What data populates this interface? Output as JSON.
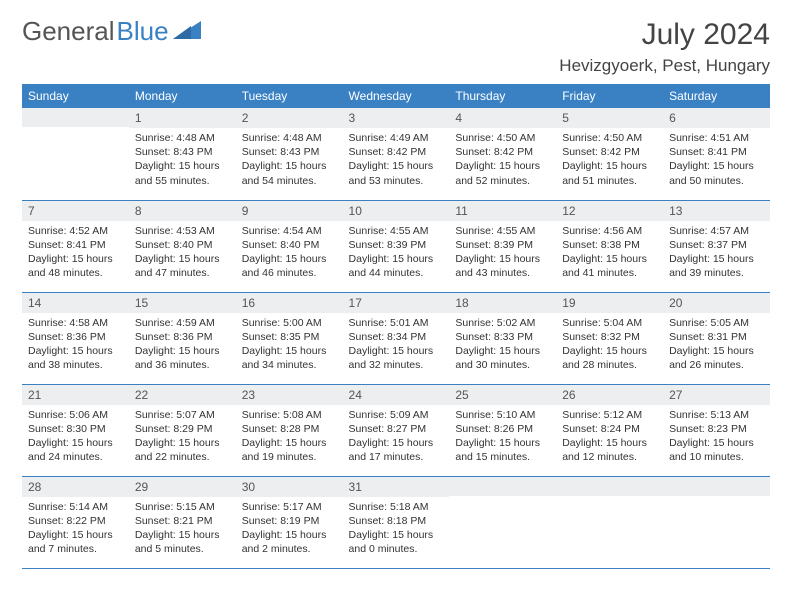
{
  "brand": {
    "name1": "General",
    "name2": "Blue"
  },
  "title": "July 2024",
  "location": "Hevizgyoerk, Pest, Hungary",
  "colors": {
    "accent": "#3a81c4",
    "header_bg": "#3a81c4",
    "daynum_bg": "#eceeef",
    "text": "#333333"
  },
  "weekdays": [
    "Sunday",
    "Monday",
    "Tuesday",
    "Wednesday",
    "Thursday",
    "Friday",
    "Saturday"
  ],
  "layout": {
    "first_weekday_index": 1,
    "days_in_month": 31
  },
  "days": {
    "1": {
      "sunrise": "4:48 AM",
      "sunset": "8:43 PM",
      "daylight": "15 hours and 55 minutes."
    },
    "2": {
      "sunrise": "4:48 AM",
      "sunset": "8:43 PM",
      "daylight": "15 hours and 54 minutes."
    },
    "3": {
      "sunrise": "4:49 AM",
      "sunset": "8:42 PM",
      "daylight": "15 hours and 53 minutes."
    },
    "4": {
      "sunrise": "4:50 AM",
      "sunset": "8:42 PM",
      "daylight": "15 hours and 52 minutes."
    },
    "5": {
      "sunrise": "4:50 AM",
      "sunset": "8:42 PM",
      "daylight": "15 hours and 51 minutes."
    },
    "6": {
      "sunrise": "4:51 AM",
      "sunset": "8:41 PM",
      "daylight": "15 hours and 50 minutes."
    },
    "7": {
      "sunrise": "4:52 AM",
      "sunset": "8:41 PM",
      "daylight": "15 hours and 48 minutes."
    },
    "8": {
      "sunrise": "4:53 AM",
      "sunset": "8:40 PM",
      "daylight": "15 hours and 47 minutes."
    },
    "9": {
      "sunrise": "4:54 AM",
      "sunset": "8:40 PM",
      "daylight": "15 hours and 46 minutes."
    },
    "10": {
      "sunrise": "4:55 AM",
      "sunset": "8:39 PM",
      "daylight": "15 hours and 44 minutes."
    },
    "11": {
      "sunrise": "4:55 AM",
      "sunset": "8:39 PM",
      "daylight": "15 hours and 43 minutes."
    },
    "12": {
      "sunrise": "4:56 AM",
      "sunset": "8:38 PM",
      "daylight": "15 hours and 41 minutes."
    },
    "13": {
      "sunrise": "4:57 AM",
      "sunset": "8:37 PM",
      "daylight": "15 hours and 39 minutes."
    },
    "14": {
      "sunrise": "4:58 AM",
      "sunset": "8:36 PM",
      "daylight": "15 hours and 38 minutes."
    },
    "15": {
      "sunrise": "4:59 AM",
      "sunset": "8:36 PM",
      "daylight": "15 hours and 36 minutes."
    },
    "16": {
      "sunrise": "5:00 AM",
      "sunset": "8:35 PM",
      "daylight": "15 hours and 34 minutes."
    },
    "17": {
      "sunrise": "5:01 AM",
      "sunset": "8:34 PM",
      "daylight": "15 hours and 32 minutes."
    },
    "18": {
      "sunrise": "5:02 AM",
      "sunset": "8:33 PM",
      "daylight": "15 hours and 30 minutes."
    },
    "19": {
      "sunrise": "5:04 AM",
      "sunset": "8:32 PM",
      "daylight": "15 hours and 28 minutes."
    },
    "20": {
      "sunrise": "5:05 AM",
      "sunset": "8:31 PM",
      "daylight": "15 hours and 26 minutes."
    },
    "21": {
      "sunrise": "5:06 AM",
      "sunset": "8:30 PM",
      "daylight": "15 hours and 24 minutes."
    },
    "22": {
      "sunrise": "5:07 AM",
      "sunset": "8:29 PM",
      "daylight": "15 hours and 22 minutes."
    },
    "23": {
      "sunrise": "5:08 AM",
      "sunset": "8:28 PM",
      "daylight": "15 hours and 19 minutes."
    },
    "24": {
      "sunrise": "5:09 AM",
      "sunset": "8:27 PM",
      "daylight": "15 hours and 17 minutes."
    },
    "25": {
      "sunrise": "5:10 AM",
      "sunset": "8:26 PM",
      "daylight": "15 hours and 15 minutes."
    },
    "26": {
      "sunrise": "5:12 AM",
      "sunset": "8:24 PM",
      "daylight": "15 hours and 12 minutes."
    },
    "27": {
      "sunrise": "5:13 AM",
      "sunset": "8:23 PM",
      "daylight": "15 hours and 10 minutes."
    },
    "28": {
      "sunrise": "5:14 AM",
      "sunset": "8:22 PM",
      "daylight": "15 hours and 7 minutes."
    },
    "29": {
      "sunrise": "5:15 AM",
      "sunset": "8:21 PM",
      "daylight": "15 hours and 5 minutes."
    },
    "30": {
      "sunrise": "5:17 AM",
      "sunset": "8:19 PM",
      "daylight": "15 hours and 2 minutes."
    },
    "31": {
      "sunrise": "5:18 AM",
      "sunset": "8:18 PM",
      "daylight": "15 hours and 0 minutes."
    }
  },
  "labels": {
    "sunrise": "Sunrise:",
    "sunset": "Sunset:",
    "daylight": "Daylight:"
  }
}
